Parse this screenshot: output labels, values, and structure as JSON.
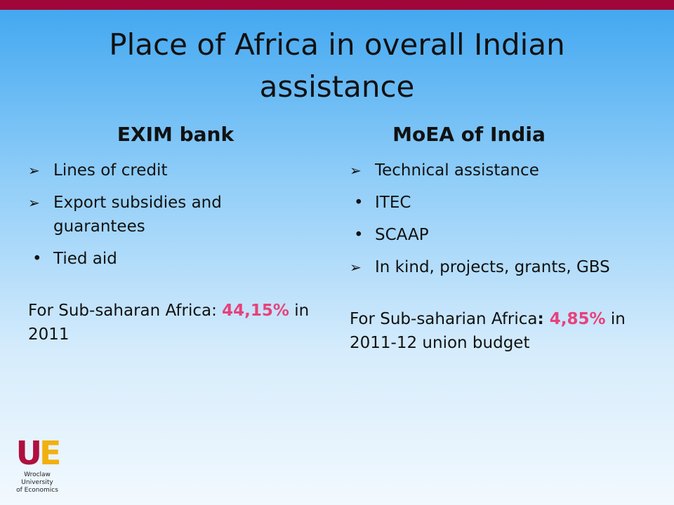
{
  "title": "Place of Africa in overall Indian assistance",
  "columns": [
    {
      "heading": "EXIM bank",
      "items": [
        "Lines of credit",
        "Export subsidies and guarantees",
        "Tied aid"
      ],
      "note": {
        "parts": [
          "For Sub-saharan Africa: ",
          "44,15%",
          " in 2011"
        ]
      }
    },
    {
      "heading": "MoEA of India",
      "items": [
        "Technical assistance",
        "ITEC",
        "SCAAP",
        "In kind, projects, grants, GBS"
      ],
      "note": {
        "parts": [
          "For Sub-saharian Africa",
          ": ",
          "4,85%",
          " in 2011-12 union budget"
        ]
      }
    }
  ],
  "logo": {
    "mark": "UE",
    "lines": [
      "Wroclaw",
      "University",
      "of Economics"
    ]
  }
}
